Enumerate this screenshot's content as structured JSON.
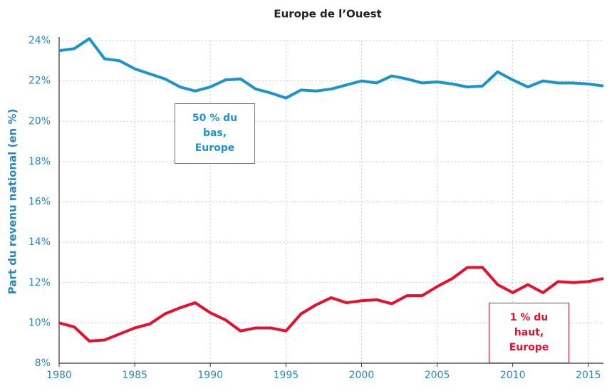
{
  "chart_data": {
    "type": "line",
    "title": "Europe de l’Ouest",
    "y_label": "Part du revenu national (en %)",
    "x": [
      1980,
      1981,
      1982,
      1983,
      1984,
      1985,
      1986,
      1987,
      1988,
      1989,
      1990,
      1991,
      1992,
      1993,
      1994,
      1995,
      1996,
      1997,
      1998,
      1999,
      2000,
      2001,
      2002,
      2003,
      2004,
      2005,
      2006,
      2007,
      2008,
      2009,
      2010,
      2011,
      2012,
      2013,
      2014,
      2015,
      2016
    ],
    "series": [
      {
        "name": "50 % du bas, Europe",
        "color": "#1d93cc",
        "values": [
          23.5,
          23.6,
          24.1,
          23.1,
          23.0,
          22.6,
          22.35,
          22.1,
          21.7,
          21.5,
          21.7,
          22.05,
          22.1,
          21.6,
          21.4,
          21.15,
          21.55,
          21.5,
          21.6,
          21.8,
          22.0,
          21.9,
          22.25,
          22.1,
          21.9,
          21.95,
          21.85,
          21.7,
          21.75,
          22.45,
          22.05,
          21.7,
          22.0,
          21.9,
          21.9,
          21.85,
          21.75
        ]
      },
      {
        "name": "1 % du haut, Europe",
        "color": "#e3102e",
        "values": [
          10.0,
          9.8,
          9.1,
          9.15,
          9.45,
          9.75,
          9.95,
          10.45,
          10.75,
          11.0,
          10.5,
          10.15,
          9.6,
          9.75,
          9.75,
          9.6,
          10.45,
          10.9,
          11.25,
          11.0,
          11.1,
          11.15,
          10.95,
          11.35,
          11.35,
          11.8,
          12.2,
          12.75,
          12.75,
          11.9,
          11.5,
          11.9,
          11.5,
          12.05,
          12.0,
          12.05,
          12.2
        ]
      }
    ],
    "xlim": [
      1980,
      2016
    ],
    "xticks": [
      1980,
      1985,
      1990,
      1995,
      2000,
      2005,
      2010,
      2015
    ],
    "ylim": [
      8,
      24
    ],
    "yticks": [
      {
        "value": 8,
        "label": "8%"
      },
      {
        "value": 10,
        "label": "10%"
      },
      {
        "value": 12,
        "label": "12%"
      },
      {
        "value": 14,
        "label": "14%"
      },
      {
        "value": 16,
        "label": "16%"
      },
      {
        "value": 18,
        "label": "18%"
      },
      {
        "value": 20,
        "label": "20%"
      },
      {
        "value": 22,
        "label": "22%"
      },
      {
        "value": 24,
        "label": "24%"
      }
    ],
    "grid": true
  }
}
